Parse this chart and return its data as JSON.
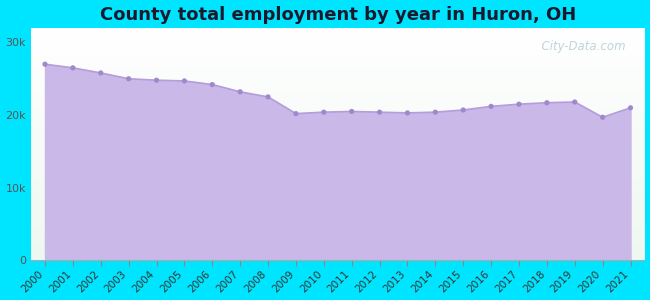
{
  "title": "County total employment by year in Huron, OH",
  "years": [
    2000,
    2001,
    2002,
    2003,
    2004,
    2005,
    2006,
    2007,
    2008,
    2009,
    2010,
    2011,
    2012,
    2013,
    2014,
    2015,
    2016,
    2017,
    2018,
    2019,
    2020,
    2021
  ],
  "values": [
    27000,
    26500,
    25800,
    25000,
    24800,
    24700,
    24200,
    23200,
    22500,
    20200,
    20400,
    20500,
    20400,
    20300,
    20400,
    20700,
    21200,
    21500,
    21700,
    21800,
    19700,
    21000
  ],
  "fill_color": "#c9b8e8",
  "line_color": "#b39ddb",
  "marker_color": "#9f88cc",
  "bg_color": "#00e5ff",
  "plot_bg_color_top": "#f0fff8",
  "plot_bg_color_bottom": "#f0fff8",
  "title_color": "#1a1a2e",
  "title_fontsize": 13,
  "ytick_labels": [
    "0",
    "10k",
    "20k",
    "30k"
  ],
  "ytick_values": [
    0,
    10000,
    20000,
    30000
  ],
  "ylim": [
    0,
    32000
  ],
  "watermark": "  City-Data.com"
}
